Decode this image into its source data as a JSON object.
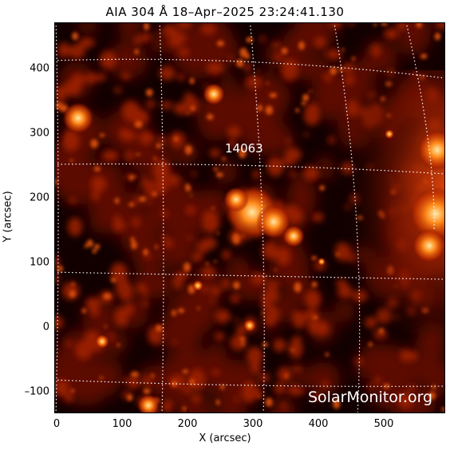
{
  "image": {
    "title": "AIA 304 Å 18–Apr–2025 23:24:41.130",
    "region_label": "14063",
    "watermark": "SolarMonitor.org",
    "x_axis_label": "X (arcsec)",
    "y_axis_label": "Y (arcsec)",
    "x_ticks": [
      "0",
      "100",
      "200",
      "300",
      "400",
      "500"
    ],
    "y_ticks": [
      "400",
      "300",
      "200",
      "100",
      "0",
      "–100"
    ],
    "colors": {
      "background": "#120000",
      "plasma_dim": "#6b0a00",
      "plasma_mid": "#c43300",
      "plasma_bright": "#ff8a1a",
      "plasma_peak": "#ffe9a8",
      "grid": "#ffffff"
    }
  }
}
